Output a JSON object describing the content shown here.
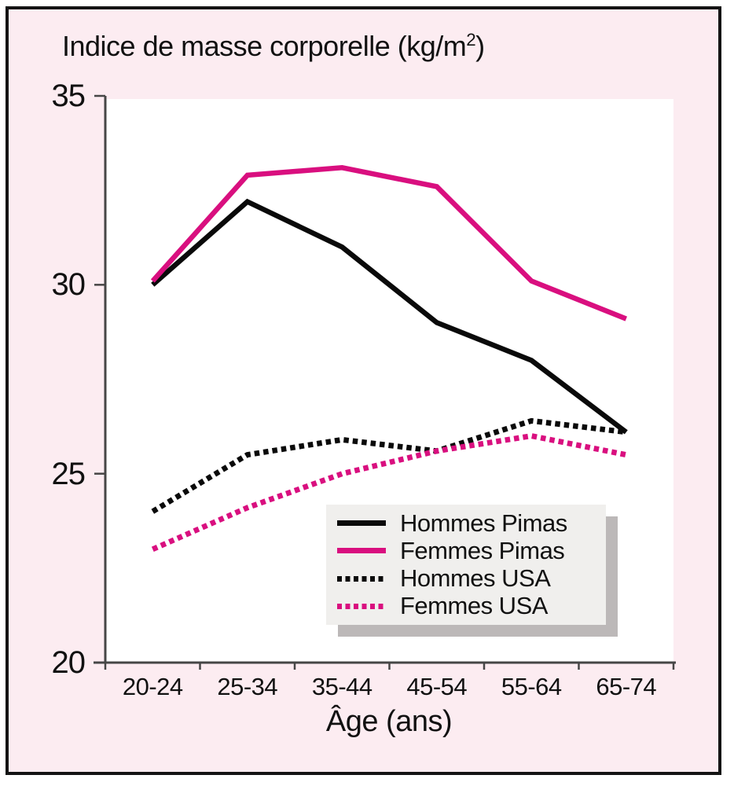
{
  "figure": {
    "title_prefix": "Indice de masse corporelle (kg/m",
    "title_sup": "2",
    "title_suffix": ")",
    "background_color": "#fcecf1",
    "frame_border_color": "#141414",
    "plot_background": "#ffffff",
    "axis_color": "#464646",
    "legend_background": "#f0efed",
    "legend_shadow_color": "#bcb8b8",
    "accent_magenta": "#d90f7f",
    "line_black": "#0a0a0a"
  },
  "chart_data": {
    "type": "line",
    "title": "Indice de masse corporelle (kg/m²)",
    "xlabel": "Âge (ans)",
    "ylabel": "",
    "ylim": [
      20,
      35
    ],
    "yticks": [
      20,
      25,
      30,
      35
    ],
    "categories": [
      "20-24",
      "25-34",
      "35-44",
      "45-54",
      "55-64",
      "65-74"
    ],
    "grid": false,
    "legend_position": "inside lower right",
    "series": [
      {
        "name": "Hommes Pimas",
        "color": "#0a0a0a",
        "style": "solid",
        "values": [
          30.0,
          32.2,
          31.0,
          29.0,
          28.0,
          26.1
        ]
      },
      {
        "name": "Femmes Pimas",
        "color": "#d90f7f",
        "style": "solid",
        "values": [
          30.1,
          32.9,
          33.1,
          32.6,
          30.1,
          29.1
        ]
      },
      {
        "name": "Hommes USA",
        "color": "#0a0a0a",
        "style": "dotted",
        "values": [
          24.0,
          25.5,
          25.9,
          25.6,
          26.4,
          26.1
        ]
      },
      {
        "name": "Femmes USA",
        "color": "#d90f7f",
        "style": "dotted",
        "values": [
          23.0,
          24.1,
          25.0,
          25.6,
          26.0,
          25.5
        ]
      }
    ]
  }
}
